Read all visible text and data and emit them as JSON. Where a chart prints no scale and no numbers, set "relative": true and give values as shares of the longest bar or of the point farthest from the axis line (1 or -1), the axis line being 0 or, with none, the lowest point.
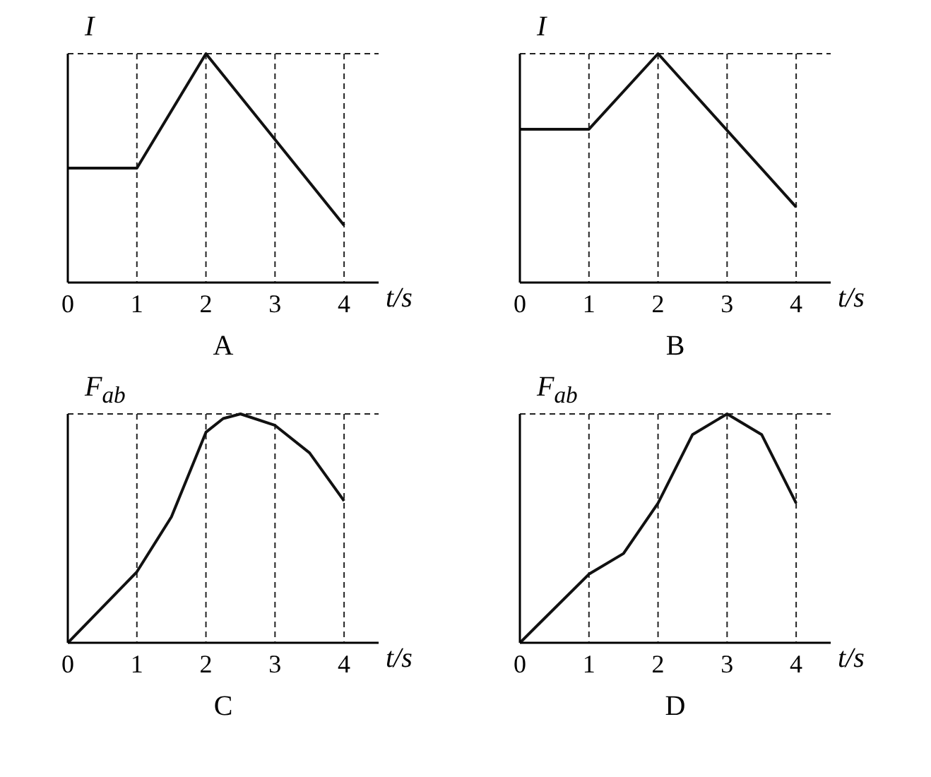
{
  "chart_data": [
    {
      "type": "line",
      "title": "A",
      "xlabel": "t/s",
      "ylabel": "I",
      "relative": true,
      "x": [
        0,
        1,
        2,
        4
      ],
      "xlim": [
        0,
        4.5
      ],
      "xticks": [
        0,
        1,
        2,
        3,
        4
      ],
      "grid": true,
      "marker": "none",
      "series": [
        {
          "color": "#111111",
          "values": [
            0.5,
            0.5,
            1,
            0.25
          ]
        }
      ]
    },
    {
      "type": "line",
      "title": "B",
      "xlabel": "t/s",
      "ylabel": "I",
      "relative": true,
      "x": [
        0,
        1,
        2,
        4
      ],
      "xlim": [
        0,
        4.5
      ],
      "xticks": [
        0,
        1,
        2,
        3,
        4
      ],
      "grid": true,
      "marker": "none",
      "series": [
        {
          "color": "#111111",
          "values": [
            0.67,
            0.67,
            1,
            0.33
          ]
        }
      ]
    },
    {
      "type": "line",
      "title": "C",
      "xlabel": "t/s",
      "ylabel": "F$_{ab}$",
      "relative": true,
      "x": [
        0,
        1,
        1.5,
        2,
        2.25,
        2.5,
        3,
        3.5,
        4
      ],
      "xlim": [
        0,
        4.5
      ],
      "xticks": [
        0,
        1,
        2,
        3,
        4
      ],
      "grid": true,
      "marker": "none",
      "series": [
        {
          "color": "#111111",
          "values": [
            0,
            0.31,
            0.55,
            0.92,
            0.98,
            1,
            0.95,
            0.83,
            0.62
          ]
        }
      ]
    },
    {
      "type": "line",
      "title": "D",
      "xlabel": "t/s",
      "ylabel": "F$_{ab}$",
      "relative": true,
      "x": [
        0,
        1,
        1.5,
        2,
        2.5,
        3,
        3.5,
        4
      ],
      "xlim": [
        0,
        4.5
      ],
      "xticks": [
        0,
        1,
        2,
        3,
        4
      ],
      "grid": true,
      "marker": "none",
      "series": [
        {
          "color": "#111111",
          "values": [
            0,
            0.3,
            0.39,
            0.61,
            0.91,
            1,
            0.91,
            0.61
          ]
        }
      ]
    }
  ]
}
